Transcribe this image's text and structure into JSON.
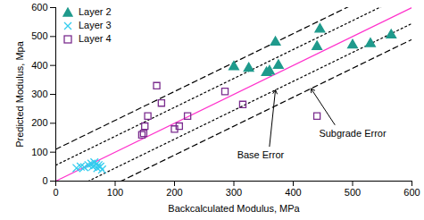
{
  "chart_data": {
    "type": "scatter",
    "x_label": "Backcalculated Modulus, MPa",
    "y_label": "Predicted Modulus, Mpa",
    "xlim": [
      0,
      600
    ],
    "xticks": [
      0,
      100,
      200,
      300,
      400,
      500,
      600
    ],
    "ylim": [
      0,
      600
    ],
    "yticks": [
      0,
      100,
      200,
      300,
      400,
      500,
      600
    ],
    "grid": false,
    "legend": "top-left",
    "series": [
      {
        "name": "Layer 2",
        "color": "#1f9a8c",
        "marker": "triangle",
        "x": [
          300,
          325,
          355,
          360,
          370,
          375,
          440,
          445,
          500,
          530,
          565
        ],
        "values": [
          395,
          390,
          375,
          380,
          480,
          400,
          465,
          525,
          470,
          475,
          505
        ]
      },
      {
        "name": "Layer 3",
        "color": "#33ccee",
        "marker": "x",
        "x": [
          35,
          42,
          48,
          55,
          60,
          62,
          65,
          68,
          70,
          72,
          75,
          78
        ],
        "values": [
          45,
          50,
          48,
          55,
          60,
          50,
          65,
          58,
          45,
          55,
          50,
          40
        ]
      },
      {
        "name": "Layer 4",
        "color": "#7b2d8e",
        "marker": "square_open",
        "x": [
          145,
          148,
          150,
          155,
          170,
          178,
          200,
          208,
          222,
          285,
          315,
          440
        ],
        "values": [
          160,
          165,
          190,
          225,
          330,
          270,
          180,
          190,
          225,
          310,
          265,
          225
        ]
      }
    ],
    "reference_lines": [
      {
        "x": [
          0,
          600
        ],
        "values": [
          0,
          600
        ],
        "color": "#ff33cc",
        "line_style": "solid"
      },
      {
        "x": [
          0,
          600
        ],
        "values": [
          55,
          655
        ],
        "color": "#000000",
        "line_style": "dotted"
      },
      {
        "x": [
          0,
          600
        ],
        "values": [
          -55,
          545
        ],
        "color": "#000000",
        "line_style": "dotted"
      },
      {
        "x": [
          0,
          600
        ],
        "values": [
          110,
          710
        ],
        "color": "#000000",
        "line_style": "dashed"
      },
      {
        "x": [
          0,
          600
        ],
        "values": [
          -110,
          490
        ],
        "color": "#000000",
        "line_style": "dashed"
      }
    ],
    "annotations": [
      {
        "text": "Subgrade Error",
        "x": 500,
        "y": 165,
        "arrow_from": [
          470,
          195
        ],
        "arrow_to": [
          430,
          320
        ]
      },
      {
        "text": "Base Error",
        "x": 345,
        "y": 90,
        "arrow_from": [
          360,
          120
        ],
        "arrow_to": [
          370,
          315
        ]
      }
    ]
  }
}
